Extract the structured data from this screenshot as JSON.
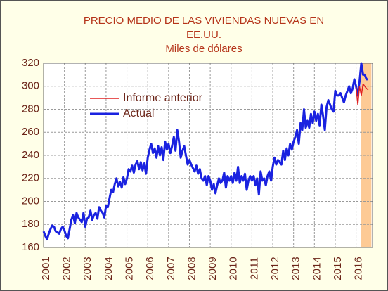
{
  "chart_data": {
    "type": "line",
    "title": [
      "PRECIO MEDIO DE LAS VIVIENDAS NUEVAS EN",
      "EE.UU."
    ],
    "subtitle": "Miles de dólares",
    "categories": [
      "2001",
      null,
      null,
      null,
      null,
      null,
      null,
      null,
      null,
      null,
      null,
      null,
      "2002",
      null,
      null,
      null,
      null,
      null,
      null,
      null,
      null,
      null,
      null,
      null,
      "2003",
      null,
      null,
      null,
      null,
      null,
      null,
      null,
      null,
      null,
      null,
      null,
      "2004",
      null,
      null,
      null,
      null,
      null,
      null,
      null,
      null,
      null,
      null,
      null,
      "2005",
      null,
      null,
      null,
      null,
      null,
      null,
      null,
      null,
      null,
      null,
      null,
      "2006",
      null,
      null,
      null,
      null,
      null,
      null,
      null,
      null,
      null,
      null,
      null,
      "2007",
      null,
      null,
      null,
      null,
      null,
      null,
      null,
      null,
      null,
      null,
      null,
      "2008",
      null,
      null,
      null,
      null,
      null,
      null,
      null,
      null,
      null,
      null,
      null,
      "2009",
      null,
      null,
      null,
      null,
      null,
      null,
      null,
      null,
      null,
      null,
      null,
      "2010",
      null,
      null,
      null,
      null,
      null,
      null,
      null,
      null,
      null,
      null,
      null,
      "2011",
      null,
      null,
      null,
      null,
      null,
      null,
      null,
      null,
      null,
      null,
      null,
      "2012",
      null,
      null,
      null,
      null,
      null,
      null,
      null,
      null,
      null,
      null,
      null,
      "2013",
      null,
      null,
      null,
      null,
      null,
      null,
      null,
      null,
      null,
      null,
      null,
      "2014",
      null,
      null,
      null,
      null,
      null,
      null,
      null,
      null,
      null,
      null,
      null,
      "2015",
      null,
      null,
      null,
      null,
      null,
      null,
      null,
      null,
      null,
      null,
      null,
      "2016",
      null,
      null,
      null,
      null,
      null,
      null,
      null
    ],
    "series": [
      {
        "name": "Informe anterior",
        "color": "#e02020",
        "width": 1.5,
        "values": [
          null,
          null,
          null,
          null,
          null,
          null,
          null,
          null,
          null,
          null,
          null,
          null,
          null,
          null,
          null,
          null,
          null,
          null,
          null,
          null,
          null,
          null,
          null,
          null,
          null,
          null,
          null,
          null,
          null,
          null,
          null,
          null,
          null,
          null,
          null,
          null,
          null,
          null,
          null,
          null,
          null,
          null,
          null,
          null,
          null,
          null,
          null,
          null,
          null,
          null,
          null,
          null,
          null,
          null,
          null,
          null,
          null,
          null,
          null,
          null,
          null,
          null,
          null,
          null,
          null,
          null,
          null,
          null,
          null,
          null,
          null,
          null,
          null,
          null,
          null,
          null,
          null,
          null,
          null,
          null,
          null,
          null,
          null,
          null,
          null,
          null,
          null,
          null,
          null,
          null,
          null,
          null,
          null,
          null,
          null,
          null,
          null,
          null,
          null,
          null,
          null,
          null,
          null,
          null,
          null,
          null,
          null,
          null,
          null,
          null,
          null,
          null,
          null,
          null,
          null,
          null,
          null,
          null,
          null,
          null,
          null,
          null,
          null,
          null,
          null,
          null,
          null,
          null,
          null,
          null,
          null,
          null,
          null,
          null,
          null,
          null,
          null,
          null,
          null,
          null,
          null,
          null,
          null,
          null,
          null,
          null,
          null,
          null,
          null,
          null,
          null,
          null,
          null,
          null,
          null,
          null,
          null,
          null,
          null,
          null,
          null,
          null,
          null,
          null,
          null,
          null,
          null,
          null,
          null,
          null,
          null,
          null,
          null,
          null,
          null,
          null,
          null,
          null,
          null,
          null,
          299,
          284,
          300,
          292,
          302,
          300,
          298,
          297
        ]
      },
      {
        "name": "Actual",
        "color": "#1a22e0",
        "width": 3,
        "values": [
          174,
          170,
          167,
          172,
          176,
          179,
          178,
          174,
          173,
          172,
          176,
          178,
          175,
          170,
          168,
          176,
          184,
          188,
          181,
          190,
          186,
          184,
          182,
          190,
          178,
          185,
          186,
          192,
          184,
          188,
          190,
          185,
          195,
          192,
          190,
          186,
          196,
          195,
          203,
          210,
          208,
          215,
          220,
          213,
          217,
          212,
          221,
          215,
          220,
          228,
          226,
          231,
          225,
          232,
          235,
          228,
          234,
          227,
          233,
          224,
          238,
          245,
          250,
          242,
          246,
          238,
          248,
          240,
          247,
          236,
          252,
          245,
          250,
          242,
          248,
          256,
          244,
          262,
          252,
          238,
          244,
          248,
          240,
          232,
          236,
          232,
          229,
          226,
          231,
          224,
          228,
          220,
          218,
          222,
          214,
          222,
          218,
          210,
          215,
          207,
          214,
          220,
          216,
          218,
          225,
          212,
          222,
          218,
          222,
          216,
          225,
          218,
          230,
          216,
          222,
          218,
          224,
          210,
          218,
          222,
          218,
          222,
          214,
          220,
          206,
          226,
          218,
          220,
          214,
          222,
          226,
          218,
          230,
          238,
          232,
          236,
          234,
          232,
          244,
          236,
          246,
          240,
          250,
          245,
          252,
          256,
          262,
          250,
          268,
          262,
          280,
          264,
          270,
          264,
          276,
          268,
          278,
          270,
          276,
          266,
          284,
          274,
          262,
          282,
          288,
          284,
          280,
          278,
          296,
          292,
          292,
          294,
          290,
          286,
          292,
          296,
          300,
          294,
          298,
          306,
          300,
          292,
          304,
          320,
          310,
          310,
          306,
          306
        ]
      }
    ],
    "ylim": [
      160,
      320
    ],
    "yticks": [
      160,
      180,
      200,
      220,
      240,
      260,
      280,
      300,
      320
    ],
    "grid": true,
    "legend": "upper left",
    "shaded_region": {
      "start": 183,
      "end": 188,
      "color": "#fdca95"
    }
  }
}
